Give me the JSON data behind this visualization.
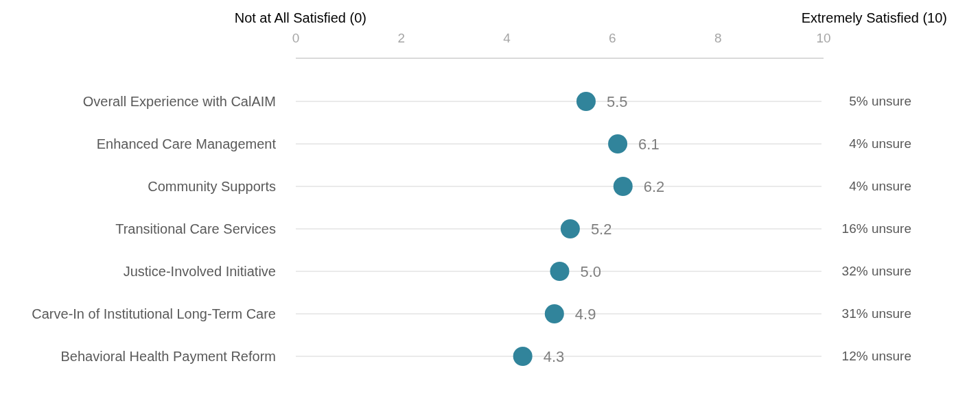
{
  "chart_data": {
    "type": "scatter",
    "orientation": "horizontal",
    "categories": [
      "Overall Experience with CalAIM",
      "Enhanced Care Management",
      "Community Supports",
      "Transitional Care Services",
      "Justice-Involved Initiative",
      "Carve-In of Institutional Long-Term Care",
      "Behavioral Health Payment Reform"
    ],
    "values": [
      5.5,
      6.1,
      6.2,
      5.2,
      5.0,
      4.9,
      4.3
    ],
    "value_labels": [
      "5.5",
      "6.1",
      "6.2",
      "5.2",
      "5.0",
      "4.9",
      "4.3"
    ],
    "color": "#31849b",
    "marker": "circle",
    "grid": "y",
    "xlim": [
      0,
      10
    ],
    "xticks": [
      0,
      2,
      4,
      6,
      8,
      10
    ],
    "annotations": [
      "Not at All Satisfied (0)",
      "Extremely Satisfied (10)",
      "5% unsure",
      "4% unsure",
      "4% unsure",
      "16% unsure",
      "32% unsure",
      "31% unsure",
      "12% unsure"
    ]
  }
}
